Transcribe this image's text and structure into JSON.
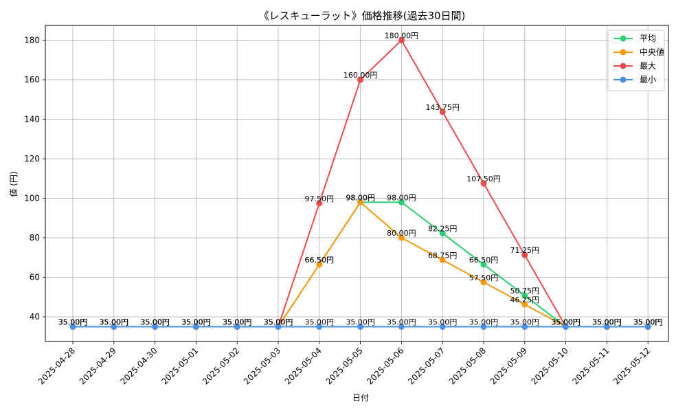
{
  "chart_data": {
    "type": "line",
    "title": "《レスキューラット》価格推移(過去30日間)",
    "xlabel": "日付",
    "ylabel": "値 (円)",
    "categories": [
      "2025-04-28",
      "2025-04-29",
      "2025-04-30",
      "2025-05-01",
      "2025-05-02",
      "2025-05-03",
      "2025-05-04",
      "2025-05-05",
      "2025-05-06",
      "2025-05-07",
      "2025-05-08",
      "2025-05-09",
      "2025-05-10",
      "2025-05-11",
      "2025-05-12"
    ],
    "y_ticks": [
      40,
      60,
      80,
      100,
      120,
      140,
      160,
      180
    ],
    "ylim": [
      27.5,
      187.5
    ],
    "grid": true,
    "legend_position": "top-right",
    "label_suffix": "円",
    "series": [
      {
        "name": "平均",
        "color": "#2ecc71",
        "values": [
          35,
          35,
          35,
          35,
          35,
          35,
          66.5,
          98,
          98,
          82.25,
          66.5,
          50.75,
          35,
          35,
          35
        ]
      },
      {
        "name": "中央値",
        "color": "#f39c12",
        "values": [
          35,
          35,
          35,
          35,
          35,
          35,
          66.5,
          98,
          80,
          68.75,
          57.5,
          46.25,
          35,
          35,
          35
        ]
      },
      {
        "name": "最大",
        "color": "#e74c4c",
        "values": [
          35,
          35,
          35,
          35,
          35,
          35,
          97.5,
          160,
          180,
          143.75,
          107.5,
          71.25,
          35,
          35,
          35
        ]
      },
      {
        "name": "最小",
        "color": "#4a90e2",
        "values": [
          35,
          35,
          35,
          35,
          35,
          35,
          35,
          35,
          35,
          35,
          35,
          35,
          35,
          35,
          35
        ]
      }
    ]
  }
}
